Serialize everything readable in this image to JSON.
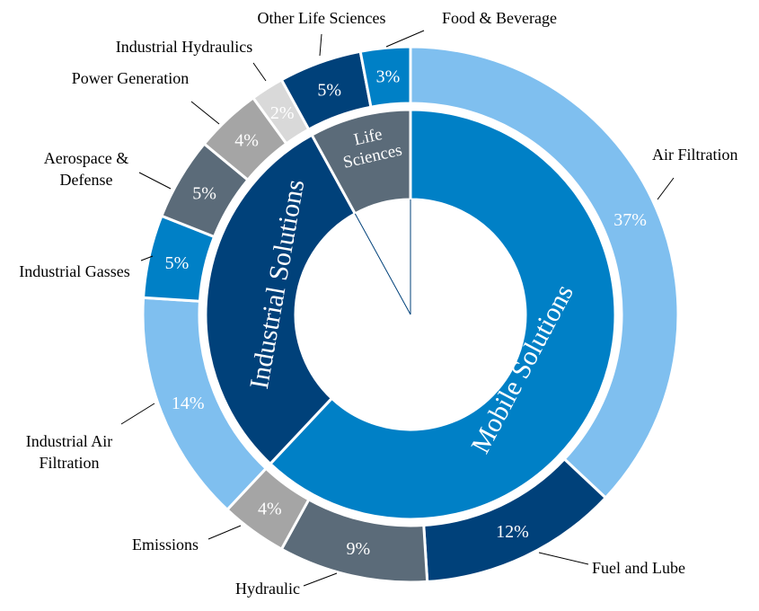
{
  "chart_data": {
    "type": "pie",
    "subtype": "nested-donut",
    "start": "12 o'clock, clockwise",
    "inner_ring": [
      {
        "label": "Mobile Solutions",
        "value": 62,
        "color": "#0080C6"
      },
      {
        "label": "Industrial Solutions",
        "value": 30,
        "color": "#00417A"
      },
      {
        "label": "Life Sciences",
        "value": 8,
        "color": "#5B6B79"
      }
    ],
    "outer_ring": [
      {
        "label": "Air Filtration",
        "value": 37,
        "value_label": "37%",
        "color": "#7FBFEF"
      },
      {
        "label": "Fuel and Lube",
        "value": 12,
        "value_label": "12%",
        "color": "#00417A"
      },
      {
        "label": "Hydraulic",
        "value": 9,
        "value_label": "9%",
        "color": "#5B6B79"
      },
      {
        "label": "Emissions",
        "value": 4,
        "value_label": "4%",
        "color": "#A5A5A5"
      },
      {
        "label": "Industrial Air Filtration",
        "value": 14,
        "value_label": "14%",
        "color": "#7FBFEF"
      },
      {
        "label": "Industrial Gasses",
        "value": 5,
        "value_label": "5%",
        "color": "#0080C6"
      },
      {
        "label": "Aerospace & Defense",
        "value": 5,
        "value_label": "5%",
        "color": "#5B6B79"
      },
      {
        "label": "Power Generation",
        "value": 4,
        "value_label": "4%",
        "color": "#A5A5A5"
      },
      {
        "label": "Industrial Hydraulics",
        "value": 2,
        "value_label": "2%",
        "color": "#D9D9D9"
      },
      {
        "label": "Other Life Sciences",
        "value": 5,
        "value_label": "5%",
        "color": "#00417A"
      },
      {
        "label": "Food & Beverage",
        "value": 3,
        "value_label": "3%",
        "color": "#0080C6"
      }
    ],
    "legend": "none (external labels with leader lines)"
  }
}
